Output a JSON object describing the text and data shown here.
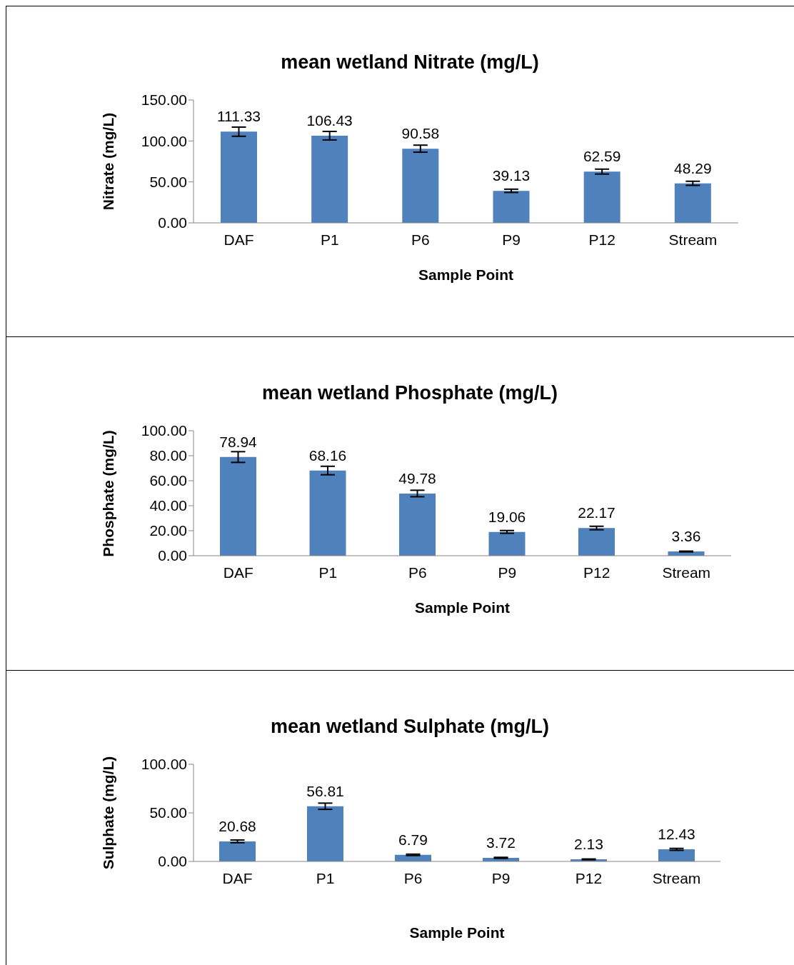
{
  "chart_data": [
    {
      "type": "bar",
      "title": "mean wetland Nitrate (mg/L)",
      "xlabel": "Sample Point",
      "ylabel": "Nitrate (mg/L)",
      "categories": [
        "DAF",
        "P1",
        "P6",
        "P9",
        "P12",
        "Stream"
      ],
      "values": [
        111.33,
        106.43,
        90.58,
        39.13,
        62.59,
        48.29
      ],
      "errors": [
        5.6,
        5.2,
        4.3,
        2,
        3,
        2.5
      ],
      "color": "#4f81bd",
      "ylim": [
        0,
        150
      ],
      "yticks": [
        {
          "value": 0,
          "label": "0.00"
        },
        {
          "value": 50,
          "label": "50.00"
        },
        {
          "value": 100,
          "label": "100.00"
        },
        {
          "value": 150,
          "label": "150.00"
        }
      ],
      "data_labels": true,
      "grid": false,
      "legend": false
    },
    {
      "type": "bar",
      "title": "mean wetland Phosphate (mg/L)",
      "xlabel": "Sample Point",
      "ylabel": "Phosphate (mg/L)",
      "categories": [
        "DAF",
        "P1",
        "P6",
        "P9",
        "P12",
        "Stream"
      ],
      "values": [
        78.94,
        68.16,
        49.78,
        19.06,
        22.17,
        3.36
      ],
      "errors": [
        4.3,
        3.4,
        2.6,
        1.1,
        1.4,
        0.3
      ],
      "color": "#4f81bd",
      "ylim": [
        0,
        100
      ],
      "yticks": [
        {
          "value": 0,
          "label": "0.00"
        },
        {
          "value": 20,
          "label": "20.00"
        },
        {
          "value": 40,
          "label": "40.00"
        },
        {
          "value": 60,
          "label": "60.00"
        },
        {
          "value": 80,
          "label": "80.00"
        },
        {
          "value": 100,
          "label": "100.00"
        }
      ],
      "data_labels": true,
      "grid": false,
      "legend": false
    },
    {
      "type": "bar",
      "title": "mean wetland Sulphate (mg/L)",
      "xlabel": "Sample Point",
      "ylabel": "Sulphate (mg/L)",
      "categories": [
        "DAF",
        "P1",
        "P6",
        "P9",
        "P12",
        "Stream"
      ],
      "values": [
        20.68,
        56.81,
        6.79,
        3.72,
        2.13,
        12.43
      ],
      "errors": [
        1.4,
        3.2,
        0.7,
        0.5,
        0.4,
        1
      ],
      "color": "#4f81bd",
      "ylim": [
        0,
        100
      ],
      "yticks": [
        {
          "value": 0,
          "label": "0.00"
        },
        {
          "value": 50,
          "label": "50.00"
        },
        {
          "value": 100,
          "label": "100.00"
        }
      ],
      "data_labels": true,
      "grid": false,
      "legend": false
    }
  ]
}
